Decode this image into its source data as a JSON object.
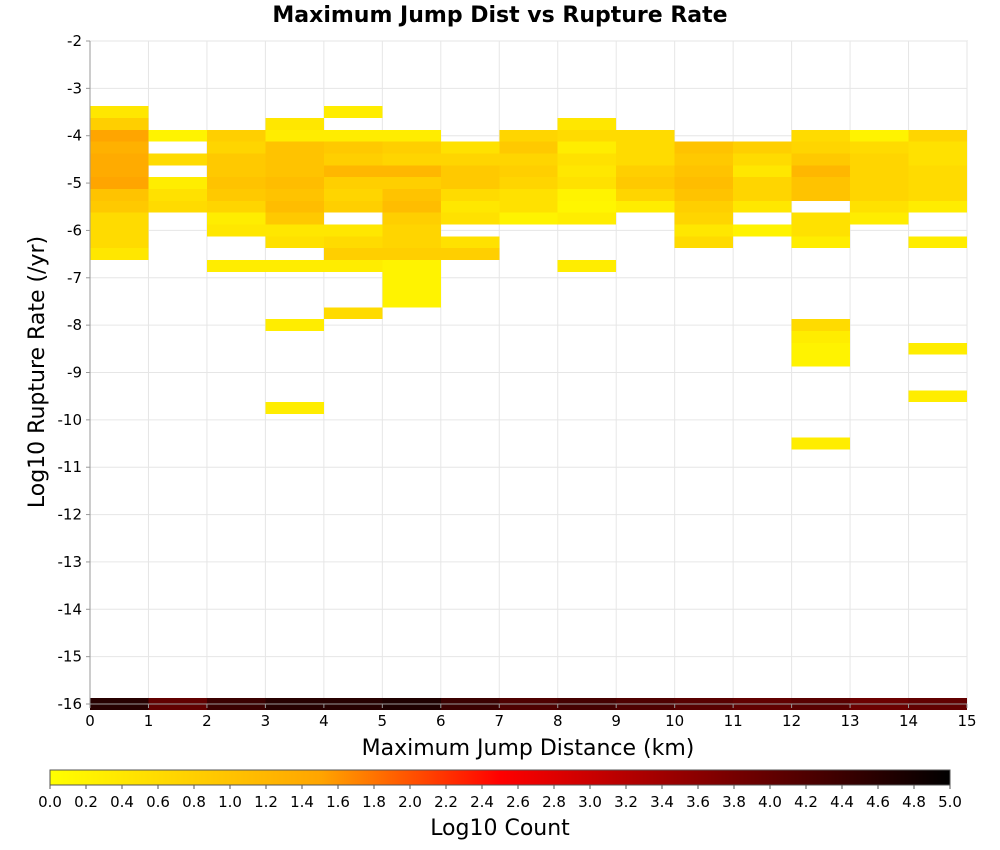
{
  "chart_data": {
    "type": "heatmap",
    "title": "Maximum Jump Dist vs Rupture Rate",
    "xlabel": "Maximum Jump Distance (km)",
    "ylabel": "Log10 Rupture Rate (/yr)",
    "xlim": [
      0,
      15
    ],
    "ylim": [
      -16,
      -2
    ],
    "x_ticks": [
      "0",
      "1",
      "2",
      "3",
      "4",
      "5",
      "6",
      "7",
      "8",
      "9",
      "10",
      "11",
      "12",
      "13",
      "14",
      "15"
    ],
    "y_ticks": [
      "-2",
      "-3",
      "-4",
      "-5",
      "-6",
      "-7",
      "-8",
      "-9",
      "-10",
      "-11",
      "-12",
      "-13",
      "-14",
      "-15",
      "-16"
    ],
    "grid": true,
    "bin_width_x": 1,
    "bin_height_y": 0.25,
    "colorbar": {
      "label": "Log10 Count",
      "range": [
        0,
        5
      ],
      "ticks": [
        "0.0",
        "0.2",
        "0.4",
        "0.6",
        "0.8",
        "1.0",
        "1.2",
        "1.4",
        "1.6",
        "1.8",
        "2.0",
        "2.2",
        "2.4",
        "2.6",
        "2.8",
        "3.0",
        "3.2",
        "3.4",
        "3.6",
        "3.8",
        "4.0",
        "4.2",
        "4.4",
        "4.6",
        "4.8",
        "5.0"
      ],
      "colormap": [
        [
          "#ffff00",
          0
        ],
        [
          "#ffa500",
          1.5
        ],
        [
          "#ff0000",
          2.5
        ],
        [
          "#800000",
          3.7
        ],
        [
          "#000000",
          5
        ]
      ]
    },
    "cells": [
      [
        0,
        -3.5,
        0.4
      ],
      [
        0,
        -3.75,
        0.8
      ],
      [
        0,
        -4.0,
        1.5
      ],
      [
        0,
        -4.25,
        1.3
      ],
      [
        0,
        -4.5,
        1.4
      ],
      [
        0,
        -4.75,
        1.4
      ],
      [
        0,
        -5.0,
        1.5
      ],
      [
        0,
        -5.25,
        1.0
      ],
      [
        0,
        -5.5,
        0.9
      ],
      [
        0,
        -5.75,
        0.6
      ],
      [
        0,
        -6.0,
        0.6
      ],
      [
        0,
        -6.25,
        0.6
      ],
      [
        0,
        -6.5,
        0.4
      ],
      [
        1,
        -4.0,
        0.2
      ],
      [
        1,
        -4.5,
        0.6
      ],
      [
        1,
        -5.0,
        0.3
      ],
      [
        1,
        -5.25,
        0.5
      ],
      [
        1,
        -5.5,
        0.6
      ],
      [
        2,
        -4.0,
        0.8
      ],
      [
        2,
        -4.25,
        0.7
      ],
      [
        2,
        -4.5,
        0.9
      ],
      [
        2,
        -4.75,
        0.9
      ],
      [
        2,
        -5.0,
        1.0
      ],
      [
        2,
        -5.25,
        0.9
      ],
      [
        2,
        -5.5,
        0.7
      ],
      [
        2,
        -5.75,
        0.3
      ],
      [
        2,
        -6.0,
        0.4
      ],
      [
        2,
        -6.75,
        0.3
      ],
      [
        3,
        -3.75,
        0.4
      ],
      [
        3,
        -4.0,
        0.3
      ],
      [
        3,
        -4.25,
        1.0
      ],
      [
        3,
        -4.5,
        1.0
      ],
      [
        3,
        -4.75,
        1.0
      ],
      [
        3,
        -5.0,
        1.1
      ],
      [
        3,
        -5.25,
        1.0
      ],
      [
        3,
        -5.5,
        1.1
      ],
      [
        3,
        -5.75,
        0.9
      ],
      [
        3,
        -6.0,
        0.4
      ],
      [
        3,
        -6.25,
        0.5
      ],
      [
        3,
        -6.75,
        0.3
      ],
      [
        3,
        -8.0,
        0.3
      ],
      [
        3,
        -9.75,
        0.3
      ],
      [
        4,
        -3.5,
        0.3
      ],
      [
        4,
        -4.0,
        0.3
      ],
      [
        4,
        -4.25,
        0.9
      ],
      [
        4,
        -4.5,
        0.8
      ],
      [
        4,
        -4.75,
        1.2
      ],
      [
        4,
        -5.0,
        0.8
      ],
      [
        4,
        -5.25,
        0.7
      ],
      [
        4,
        -5.5,
        0.8
      ],
      [
        4,
        -6.0,
        0.4
      ],
      [
        4,
        -6.25,
        0.6
      ],
      [
        4,
        -6.5,
        0.8
      ],
      [
        4,
        -6.75,
        0.3
      ],
      [
        4,
        -7.75,
        0.6
      ],
      [
        5,
        -4.0,
        0.3
      ],
      [
        5,
        -4.25,
        0.8
      ],
      [
        5,
        -4.5,
        0.7
      ],
      [
        5,
        -4.75,
        1.2
      ],
      [
        5,
        -5.0,
        0.8
      ],
      [
        5,
        -5.25,
        1.0
      ],
      [
        5,
        -5.5,
        1.1
      ],
      [
        5,
        -5.75,
        0.8
      ],
      [
        5,
        -6.0,
        0.7
      ],
      [
        5,
        -6.25,
        0.7
      ],
      [
        5,
        -6.5,
        0.8
      ],
      [
        5,
        -6.75,
        0.2
      ],
      [
        5,
        -7.0,
        0.2
      ],
      [
        5,
        -7.25,
        0.2
      ],
      [
        5,
        -7.5,
        0.2
      ],
      [
        6,
        -4.25,
        0.5
      ],
      [
        6,
        -4.5,
        0.7
      ],
      [
        6,
        -4.75,
        0.9
      ],
      [
        6,
        -5.0,
        0.9
      ],
      [
        6,
        -5.25,
        0.6
      ],
      [
        6,
        -5.5,
        0.4
      ],
      [
        6,
        -5.75,
        0.5
      ],
      [
        6,
        -6.25,
        0.5
      ],
      [
        6,
        -6.5,
        0.8
      ],
      [
        7,
        -4.0,
        0.7
      ],
      [
        7,
        -4.25,
        0.9
      ],
      [
        7,
        -4.5,
        0.7
      ],
      [
        7,
        -4.75,
        0.8
      ],
      [
        7,
        -5.0,
        0.7
      ],
      [
        7,
        -5.25,
        0.5
      ],
      [
        7,
        -5.5,
        0.5
      ],
      [
        7,
        -5.75,
        0.2
      ],
      [
        8,
        -3.75,
        0.4
      ],
      [
        8,
        -4.0,
        0.6
      ],
      [
        8,
        -4.25,
        0.3
      ],
      [
        8,
        -4.5,
        0.5
      ],
      [
        8,
        -4.75,
        0.4
      ],
      [
        8,
        -5.0,
        0.5
      ],
      [
        8,
        -5.25,
        0.2
      ],
      [
        8,
        -5.5,
        0.15
      ],
      [
        8,
        -5.75,
        0.3
      ],
      [
        8,
        -6.75,
        0.3
      ],
      [
        9,
        -4.0,
        0.6
      ],
      [
        9,
        -4.25,
        0.6
      ],
      [
        9,
        -4.5,
        0.6
      ],
      [
        9,
        -4.75,
        0.8
      ],
      [
        9,
        -5.0,
        0.9
      ],
      [
        9,
        -5.25,
        0.7
      ],
      [
        9,
        -5.5,
        0.3
      ],
      [
        10,
        -4.25,
        1.0
      ],
      [
        10,
        -4.5,
        0.9
      ],
      [
        10,
        -4.75,
        1.0
      ],
      [
        10,
        -5.0,
        1.1
      ],
      [
        10,
        -5.25,
        1.0
      ],
      [
        10,
        -5.5,
        0.8
      ],
      [
        10,
        -5.75,
        0.7
      ],
      [
        10,
        -6.0,
        0.4
      ],
      [
        10,
        -6.25,
        0.6
      ],
      [
        11,
        -4.25,
        0.8
      ],
      [
        11,
        -4.5,
        0.6
      ],
      [
        11,
        -4.75,
        0.4
      ],
      [
        11,
        -5.0,
        0.7
      ],
      [
        11,
        -5.25,
        0.7
      ],
      [
        11,
        -5.5,
        0.4
      ],
      [
        11,
        -6.0,
        0.2
      ],
      [
        12,
        -4.0,
        0.6
      ],
      [
        12,
        -4.25,
        0.7
      ],
      [
        12,
        -4.5,
        0.9
      ],
      [
        12,
        -4.75,
        1.2
      ],
      [
        12,
        -5.0,
        1.0
      ],
      [
        12,
        -5.25,
        1.0
      ],
      [
        12,
        -5.75,
        0.5
      ],
      [
        12,
        -6.0,
        0.5
      ],
      [
        12,
        -6.25,
        0.3
      ],
      [
        12,
        -8.0,
        0.6
      ],
      [
        12,
        -8.25,
        0.3
      ],
      [
        12,
        -8.5,
        0.2
      ],
      [
        12,
        -8.75,
        0.2
      ],
      [
        12,
        -10.5,
        0.3
      ],
      [
        13,
        -4.0,
        0.2
      ],
      [
        13,
        -4.25,
        0.6
      ],
      [
        13,
        -4.5,
        0.7
      ],
      [
        13,
        -4.75,
        0.7
      ],
      [
        13,
        -5.0,
        0.7
      ],
      [
        13,
        -5.25,
        0.7
      ],
      [
        13,
        -5.5,
        0.5
      ],
      [
        13,
        -5.75,
        0.3
      ],
      [
        14,
        -4.0,
        0.7
      ],
      [
        14,
        -4.25,
        0.5
      ],
      [
        14,
        -4.5,
        0.5
      ],
      [
        14,
        -4.75,
        0.6
      ],
      [
        14,
        -5.0,
        0.6
      ],
      [
        14,
        -5.25,
        0.6
      ],
      [
        14,
        -5.5,
        0.3
      ],
      [
        14,
        -6.25,
        0.3
      ],
      [
        14,
        -8.5,
        0.3
      ],
      [
        14,
        -9.5,
        0.3
      ],
      [
        0,
        -16.0,
        4.6
      ],
      [
        1,
        -16.0,
        4.0
      ],
      [
        2,
        -16.0,
        4.4
      ],
      [
        3,
        -16.0,
        4.6
      ],
      [
        4,
        -16.0,
        4.6
      ],
      [
        5,
        -16.0,
        4.7
      ],
      [
        6,
        -16.0,
        4.4
      ],
      [
        7,
        -16.0,
        4.2
      ],
      [
        8,
        -16.0,
        4.3
      ],
      [
        9,
        -16.0,
        4.2
      ],
      [
        10,
        -16.0,
        4.1
      ],
      [
        11,
        -16.0,
        4.0
      ],
      [
        12,
        -16.0,
        4.1
      ],
      [
        13,
        -16.0,
        3.9
      ],
      [
        14,
        -16.0,
        4.0
      ]
    ]
  }
}
